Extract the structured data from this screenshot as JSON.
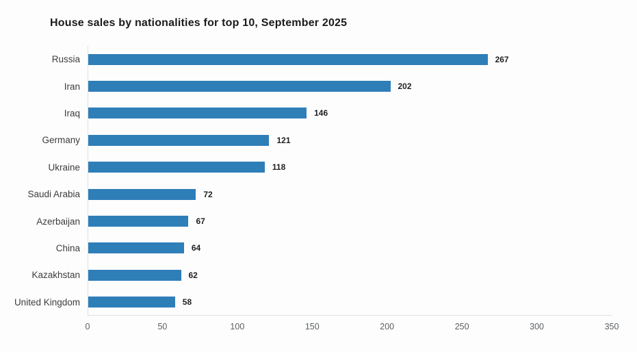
{
  "title": "House sales by nationalities for top 10, September 2025",
  "chart_data": {
    "type": "bar",
    "orientation": "horizontal",
    "title": "House sales by nationalities for top 10, September 2025",
    "categories": [
      "Russia",
      "Iran",
      "Iraq",
      "Germany",
      "Ukraine",
      "Saudi Arabia",
      "Azerbaijan",
      "China",
      "Kazakhstan",
      "United Kingdom"
    ],
    "values": [
      267,
      202,
      146,
      121,
      118,
      72,
      67,
      64,
      62,
      58
    ],
    "xlabel": "",
    "ylabel": "",
    "xlim": [
      0,
      350
    ],
    "x_ticks": [
      0,
      50,
      100,
      150,
      200,
      250,
      300,
      350
    ],
    "grid": false,
    "legend": "none",
    "value_labels_shown": true
  },
  "colors": {
    "bar": "#2e7eb8",
    "axis_line": "#dcdfe2",
    "title_text": "#1a1a1a",
    "category_text": "#3c3c3c",
    "value_text": "#1f1f1f",
    "tick_text": "#5a5f63",
    "background": "#fdfdfd"
  }
}
